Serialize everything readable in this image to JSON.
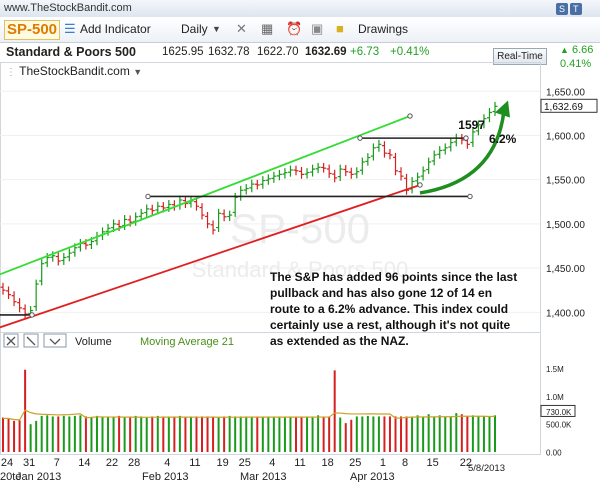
{
  "site": {
    "url": "www.TheStockBandit.com",
    "share_labels": [
      "S",
      "T"
    ]
  },
  "toolbar": {
    "symbol": "SP-500",
    "add_indicator": "Add Indicator",
    "period": "Daily",
    "drawings": "Drawings",
    "realtime_label": "Real-Time",
    "realtime_change": "6.66",
    "realtime_pct": "0.41%"
  },
  "quote": {
    "name": "Standard & Poors 500",
    "open": "1625.95",
    "high": "1632.78",
    "low": "1622.70",
    "close": "1632.69",
    "change": "+6.73",
    "change_pct": "+0.41%"
  },
  "source_label": "TheStockBandit.com",
  "watermark": {
    "symbol": "SP-500",
    "name": "Standard & Poors 500"
  },
  "annotation": "The S&P has added 96 points since the last pullback and has also gone 12 of 14 en route to a 6.2% advance. This index could certainly use a rest, although it's not quite as extended as the NAZ.",
  "colors": {
    "up": "#1a9a1a",
    "down": "#d62020",
    "channel_upper": "#33dd33",
    "channel_lower": "#e02020",
    "arrow": "#1e8f1e"
  },
  "chart_data": {
    "type": "ohlc",
    "price_axis": {
      "ticks": [
        1400,
        1450,
        1500,
        1550,
        1600,
        1650
      ],
      "tick_labels": [
        "1,400.00",
        "1,450.00",
        "1,500.00",
        "1,550.00",
        "1,600.00",
        "1,650.00"
      ],
      "last_price_label": "1,632.69",
      "range": [
        1380,
        1665
      ]
    },
    "volume_axis": {
      "tick_labels": [
        "0.00",
        "500.0K",
        "730.0K",
        "1.0M",
        "1.5M"
      ],
      "tick_values": [
        0,
        500,
        730,
        1000,
        1500
      ],
      "unit": "K",
      "range": [
        0,
        1800
      ],
      "moving_average_label": "730.0K"
    },
    "volume_panel": {
      "title": "Volume",
      "ma_label": "Moving Average 21"
    },
    "x_tick_labels": [
      "24",
      "31",
      "7",
      "14",
      "22",
      "28",
      "4",
      "11",
      "19",
      "25",
      "4",
      "11",
      "18",
      "25",
      "1",
      "8",
      "15",
      "22"
    ],
    "month_labels": [
      "Jan 2013",
      "Feb 2013",
      "Mar 2013",
      "Apr 2013"
    ],
    "overflow_date_label": "20te",
    "date_stamp": "5/8/2013",
    "levels": [
      {
        "label": "1597",
        "value": 1597
      }
    ],
    "gain_label": "6.2%",
    "closes": [
      1425,
      1420,
      1412,
      1405,
      1398,
      1402,
      1432,
      1455,
      1462,
      1464,
      1458,
      1462,
      1467,
      1473,
      1478,
      1476,
      1480,
      1486,
      1491,
      1495,
      1500,
      1497,
      1505,
      1502,
      1508,
      1512,
      1517,
      1515,
      1520,
      1518,
      1522,
      1520,
      1527,
      1523,
      1526,
      1520,
      1510,
      1500,
      1493,
      1512,
      1508,
      1510,
      1530,
      1538,
      1540,
      1545,
      1544,
      1549,
      1551,
      1554,
      1556,
      1558,
      1561,
      1560,
      1556,
      1558,
      1562,
      1564,
      1563,
      1557,
      1552,
      1562,
      1559,
      1556,
      1559,
      1570,
      1575,
      1586,
      1590,
      1580,
      1578,
      1560,
      1554,
      1538,
      1548,
      1553,
      1560,
      1570,
      1578,
      1583,
      1586,
      1592,
      1597,
      1595,
      1590,
      1604,
      1612,
      1619,
      1626,
      1633
    ],
    "volumes": [
      620,
      610,
      560,
      570,
      1480,
      500,
      560,
      650,
      660,
      640,
      640,
      650,
      640,
      650,
      660,
      640,
      620,
      650,
      630,
      640,
      640,
      650,
      620,
      640,
      650,
      640,
      630,
      640,
      650,
      640,
      640,
      640,
      650,
      620,
      640,
      640,
      640,
      640,
      640,
      630,
      640,
      650,
      640,
      640,
      640,
      640,
      640,
      640,
      640,
      640,
      640,
      640,
      640,
      640,
      640,
      640,
      640,
      660,
      640,
      640,
      1470,
      620,
      520,
      580,
      640,
      640,
      650,
      640,
      640,
      640,
      640,
      640,
      640,
      640,
      640,
      660,
      640,
      680,
      640,
      660,
      640,
      640,
      700,
      680,
      640,
      660,
      640,
      640,
      640,
      660
    ]
  }
}
